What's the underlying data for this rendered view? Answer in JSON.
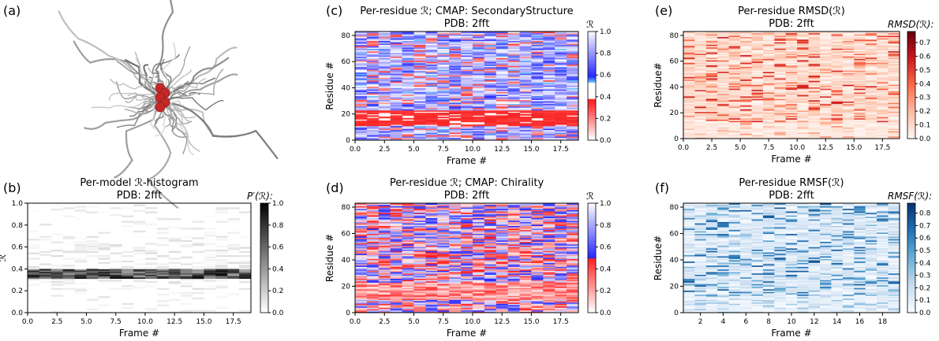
{
  "panel_labels": [
    "(a)",
    "(b)",
    "(c)",
    "(d)",
    "(e)",
    "(f)"
  ],
  "chart_data": [
    {
      "id": "b",
      "type": "heatmap",
      "title": "Per-model ℛ-histogram",
      "subtitle": "PDB: 2fft",
      "xlabel": "Frame #",
      "ylabel": "ℛ",
      "xlim": [
        0,
        19
      ],
      "ylim": [
        0,
        1
      ],
      "xticks": [
        "0.0",
        "2.5",
        "5.0",
        "7.5",
        "10.0",
        "12.5",
        "15.0",
        "17.5"
      ],
      "yticks": [
        "0.0",
        "0.2",
        "0.4",
        "0.6",
        "0.8",
        "1.0"
      ],
      "colorbar_label": "P′(ℛ):",
      "colorbar_ticks": [
        "0.0",
        "0.2",
        "0.4",
        "0.6",
        "0.8",
        "1.0"
      ],
      "colormap": "Greys",
      "rows": 80,
      "dense_band": [
        0.3,
        0.4
      ]
    },
    {
      "id": "c",
      "type": "heatmap",
      "title": "Per-residue ℛ; CMAP: SecondaryStructure",
      "subtitle": "PDB: 2fft",
      "xlabel": "Frame #",
      "ylabel": "Residue #",
      "xlim": [
        0,
        19
      ],
      "ylim": [
        0,
        83
      ],
      "xticks": [
        "0.0",
        "2.5",
        "5.0",
        "7.5",
        "10.0",
        "12.5",
        "15.0",
        "17.5"
      ],
      "yticks": [
        "0",
        "20",
        "40",
        "60",
        "80"
      ],
      "colorbar_label": "ℛ",
      "colorbar_ticks": [
        "0.0",
        "0.2",
        "0.4",
        "0.6",
        "0.8",
        "1.0"
      ],
      "colormap": "SecondaryStructure",
      "rows": 83
    },
    {
      "id": "d",
      "type": "heatmap",
      "title": "Per-residue ℛ; CMAP: Chirality",
      "subtitle": "PDB: 2fft",
      "xlabel": "Frame #",
      "ylabel": "Residue #",
      "xlim": [
        0,
        19
      ],
      "ylim": [
        0,
        83
      ],
      "xticks": [
        "0.0",
        "2.5",
        "5.0",
        "7.5",
        "10.0",
        "12.5",
        "15.0",
        "17.5"
      ],
      "yticks": [
        "0",
        "20",
        "40",
        "60",
        "80"
      ],
      "colorbar_label": "ℛ",
      "colorbar_ticks": [
        "0.0",
        "0.2",
        "0.4",
        "0.6",
        "0.8",
        "1.0"
      ],
      "colormap": "Chirality",
      "rows": 83
    },
    {
      "id": "e",
      "type": "heatmap",
      "title": "Per-residue RMSD(ℛ)",
      "subtitle": "PDB: 2fft",
      "xlabel": "Frame #",
      "ylabel": "Residue#",
      "xlim": [
        0,
        19
      ],
      "ylim": [
        0,
        83
      ],
      "xticks": [
        "0.0",
        "2.5",
        "5.0",
        "7.5",
        "10.0",
        "12.5",
        "15.0",
        "17.5"
      ],
      "yticks": [
        "0",
        "20",
        "40",
        "60",
        "80"
      ],
      "colorbar_label": "RMSD(ℛ):",
      "colorbar_ticks": [
        "0.0",
        "0.1",
        "0.2",
        "0.3",
        "0.4",
        "0.5",
        "0.6",
        "0.7"
      ],
      "colorbar_max": 0.78,
      "colormap": "Reds",
      "rows": 83
    },
    {
      "id": "f",
      "type": "heatmap",
      "title": "Per-residue RMSF(ℛ)",
      "subtitle": "PDB: 2fft",
      "xlabel": "Frame #",
      "ylabel": "Residue#",
      "xlim": [
        0.5,
        19.5
      ],
      "ylim": [
        0,
        83
      ],
      "xticks": [
        "2",
        "4",
        "6",
        "8",
        "10",
        "12",
        "14",
        "16",
        "18"
      ],
      "yticks": [
        "0",
        "20",
        "40",
        "60",
        "80"
      ],
      "colorbar_label": "RMSF(ℛ):",
      "colorbar_ticks": [
        "0.0",
        "0.1",
        "0.2",
        "0.3",
        "0.4",
        "0.5",
        "0.6",
        "0.7",
        "0.8"
      ],
      "colorbar_max": 0.88,
      "colormap": "Blues",
      "rows": 83
    }
  ],
  "image_a": {
    "description": "protein-structure-render"
  }
}
